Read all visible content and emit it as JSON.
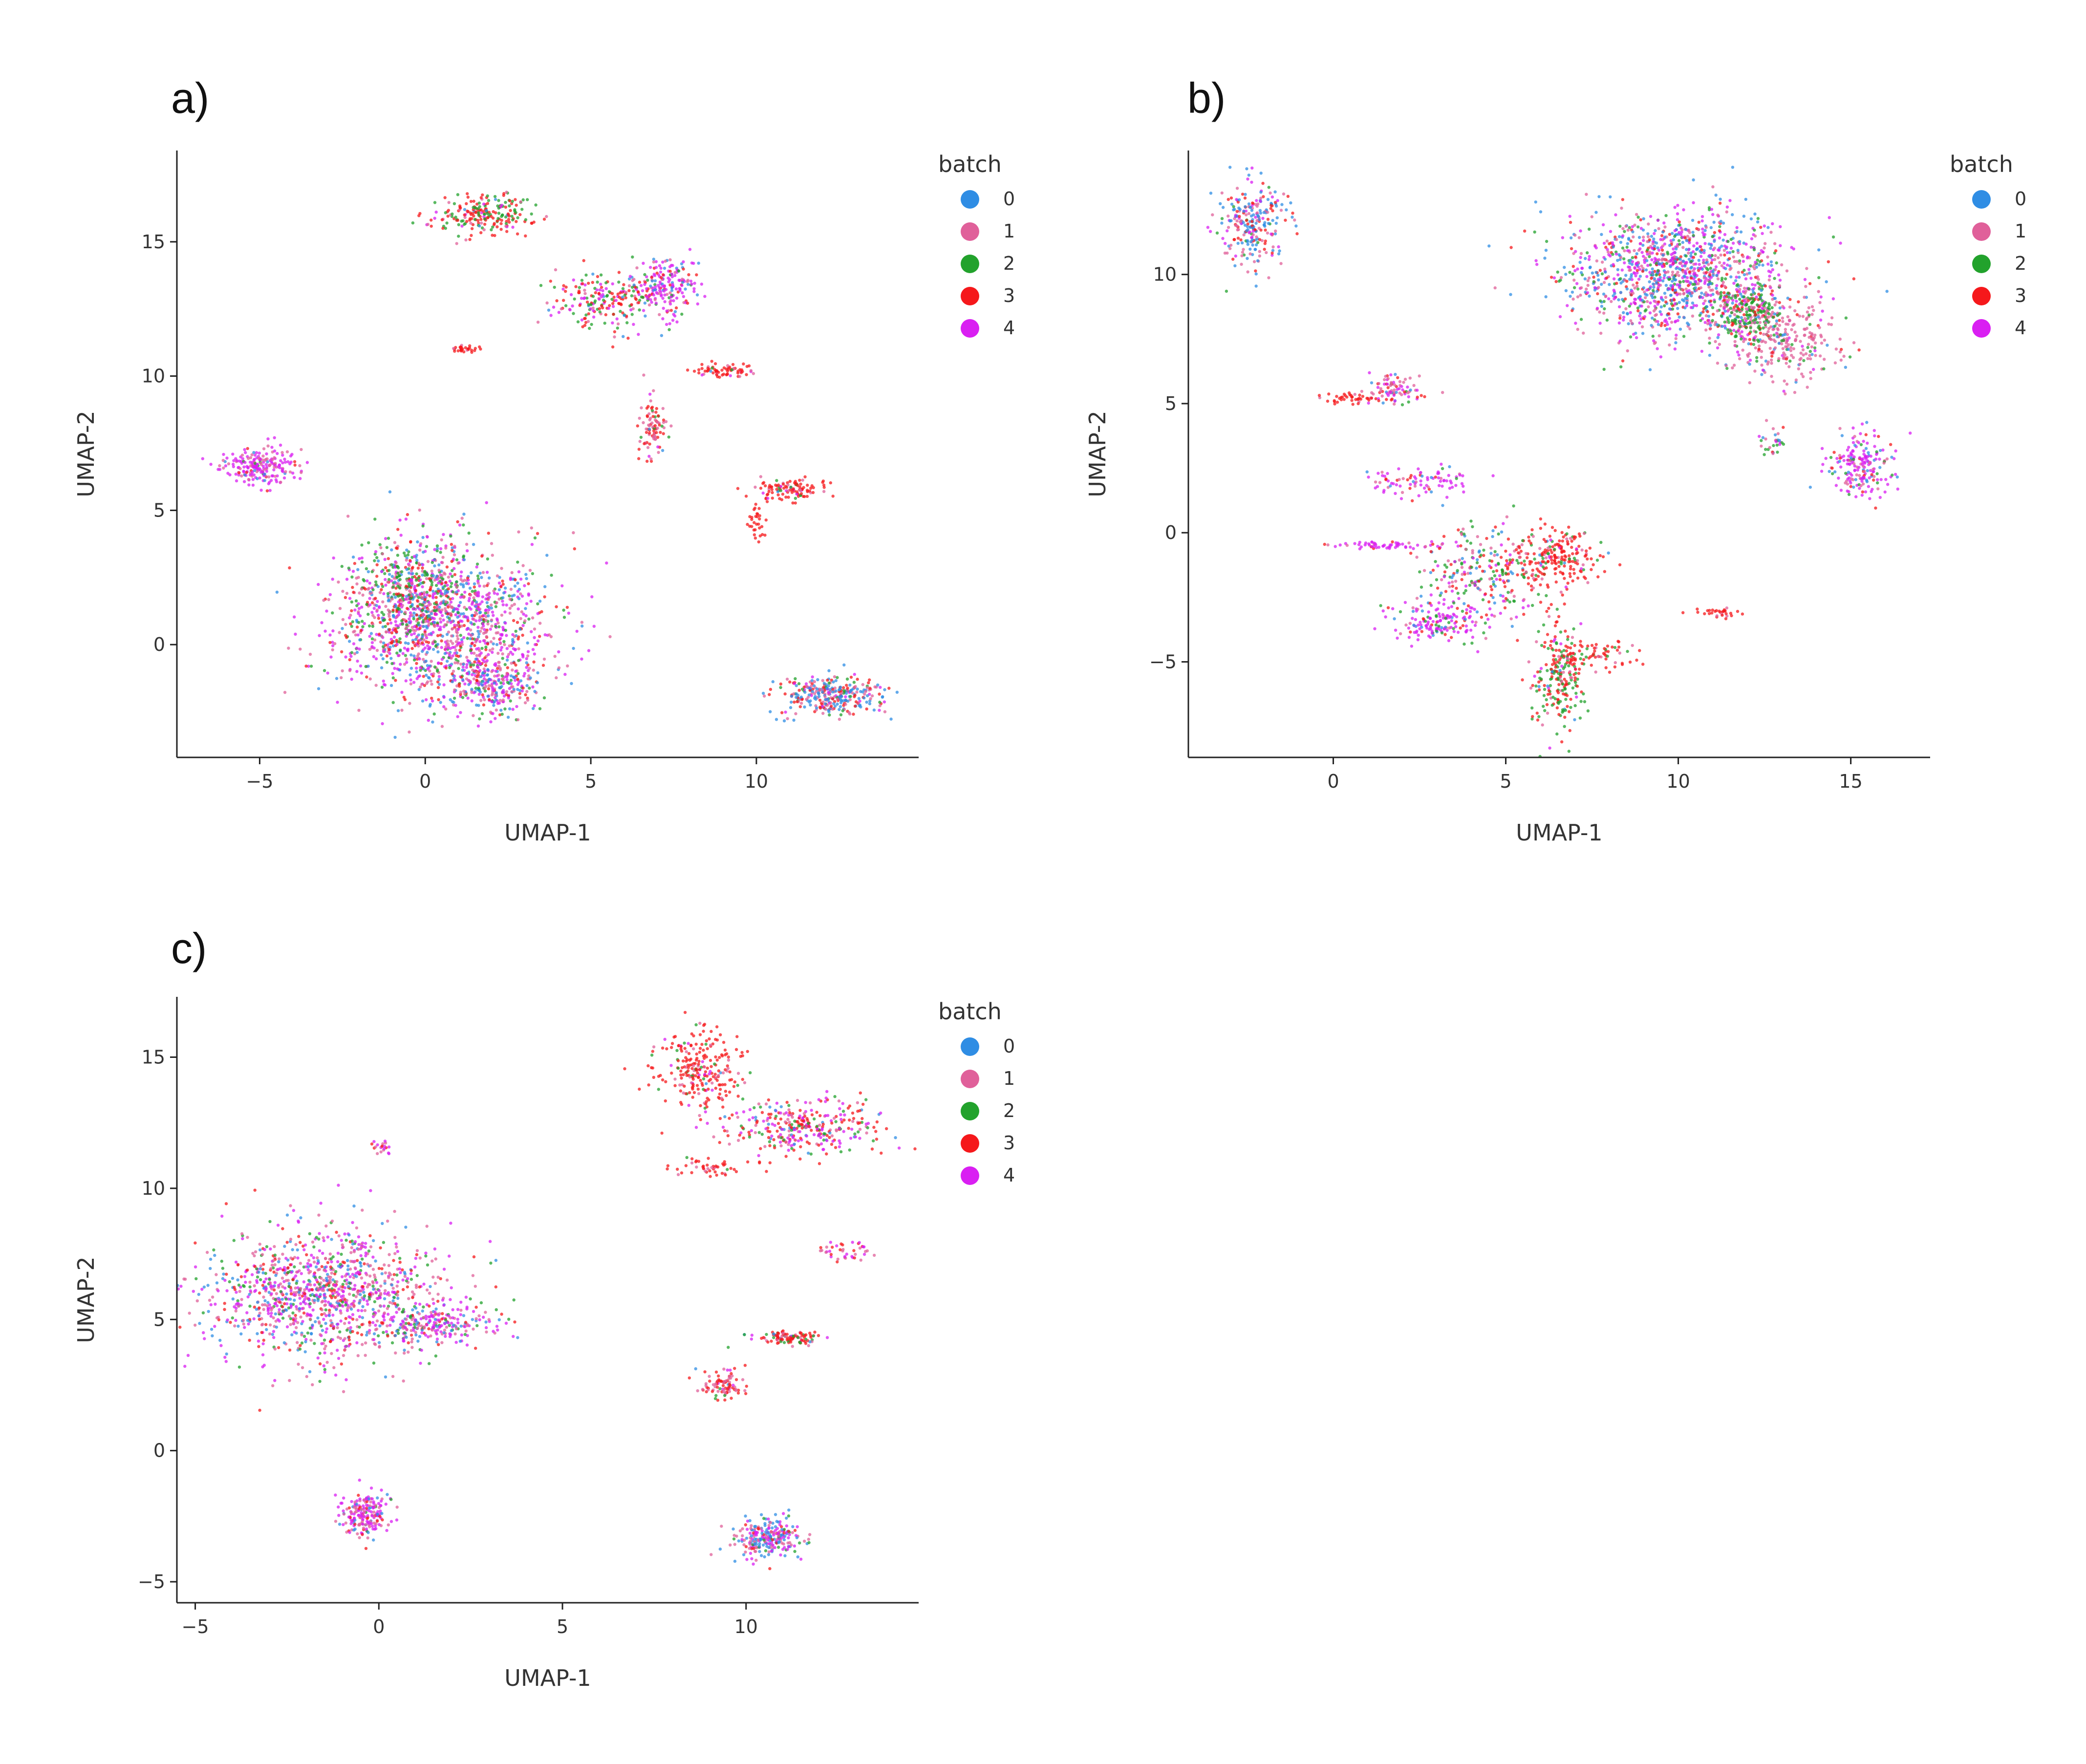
{
  "chart_data": [
    {
      "panel": "a)",
      "type": "scatter",
      "xlabel": "UMAP-1",
      "ylabel": "UMAP-2",
      "xlim": [
        -7.5,
        14.9
      ],
      "ylim": [
        -4.2,
        18.4
      ],
      "xticks": [
        -5,
        0,
        5,
        10
      ],
      "yticks": [
        0,
        5,
        10,
        15
      ],
      "legend": {
        "title": "batch",
        "position": "right"
      },
      "series": [
        {
          "name": "0",
          "color": "#2f8de4"
        },
        {
          "name": "1",
          "color": "#e0609a"
        },
        {
          "name": "2",
          "color": "#22a22c"
        },
        {
          "name": "3",
          "color": "#f5181b"
        },
        {
          "name": "4",
          "color": "#d91ff2"
        }
      ],
      "clusters": [
        {
          "cx": 0.5,
          "cy": 0.8,
          "sx": 1.6,
          "sy": 1.4,
          "n": 1400,
          "mix": [
            0.18,
            0.25,
            0.12,
            0.12,
            0.33
          ]
        },
        {
          "cx": -0.5,
          "cy": 2.2,
          "sx": 0.9,
          "sy": 0.9,
          "n": 300,
          "mix": [
            0.15,
            0.15,
            0.35,
            0.25,
            0.1
          ]
        },
        {
          "cx": 2.0,
          "cy": -1.5,
          "sx": 0.7,
          "sy": 0.5,
          "n": 250,
          "mix": [
            0.25,
            0.25,
            0.1,
            0.1,
            0.3
          ]
        },
        {
          "cx": -5.0,
          "cy": 6.6,
          "sx": 0.6,
          "sy": 0.35,
          "n": 220,
          "mix": [
            0.05,
            0.2,
            0.05,
            0.05,
            0.65
          ]
        },
        {
          "cx": 1.8,
          "cy": 16.0,
          "sx": 0.7,
          "sy": 0.35,
          "n": 220,
          "mix": [
            0.02,
            0.1,
            0.33,
            0.5,
            0.05
          ]
        },
        {
          "cx": 5.5,
          "cy": 12.8,
          "sx": 0.8,
          "sy": 0.5,
          "n": 220,
          "mix": [
            0.05,
            0.1,
            0.25,
            0.35,
            0.25
          ]
        },
        {
          "cx": 7.3,
          "cy": 13.4,
          "sx": 0.45,
          "sy": 0.6,
          "n": 180,
          "mix": [
            0.15,
            0.1,
            0.1,
            0.1,
            0.55
          ]
        },
        {
          "cx": 6.9,
          "cy": 8.0,
          "sx": 0.2,
          "sy": 0.6,
          "n": 90,
          "mix": [
            0.02,
            0.45,
            0.08,
            0.35,
            0.1
          ]
        },
        {
          "cx": 9.0,
          "cy": 10.2,
          "sx": 0.5,
          "sy": 0.12,
          "n": 70,
          "mix": [
            0.02,
            0.15,
            0.05,
            0.7,
            0.08
          ]
        },
        {
          "cx": 1.2,
          "cy": 11.0,
          "sx": 0.2,
          "sy": 0.08,
          "n": 30,
          "mix": [
            0.0,
            0.2,
            0.0,
            0.8,
            0.0
          ]
        },
        {
          "cx": 11.0,
          "cy": 5.8,
          "sx": 0.5,
          "sy": 0.18,
          "n": 110,
          "mix": [
            0.02,
            0.1,
            0.05,
            0.78,
            0.05
          ]
        },
        {
          "cx": 10.0,
          "cy": 4.5,
          "sx": 0.12,
          "sy": 0.3,
          "n": 30,
          "mix": [
            0.0,
            0.1,
            0.0,
            0.9,
            0.0
          ]
        },
        {
          "cx": 12.2,
          "cy": -1.9,
          "sx": 0.8,
          "sy": 0.35,
          "n": 320,
          "mix": [
            0.35,
            0.25,
            0.08,
            0.22,
            0.1
          ]
        }
      ]
    },
    {
      "panel": "b)",
      "type": "scatter",
      "xlabel": "UMAP-1",
      "ylabel": "UMAP-2",
      "xlim": [
        -4.2,
        17.3
      ],
      "ylim": [
        -8.7,
        14.8
      ],
      "xticks": [
        0,
        5,
        10,
        15
      ],
      "yticks": [
        -5,
        0,
        5,
        10
      ],
      "legend": {
        "title": "batch",
        "position": "right"
      },
      "series": [
        {
          "name": "0",
          "color": "#2f8de4"
        },
        {
          "name": "1",
          "color": "#e0609a"
        },
        {
          "name": "2",
          "color": "#22a22c"
        },
        {
          "name": "3",
          "color": "#f5181b"
        },
        {
          "name": "4",
          "color": "#d91ff2"
        }
      ],
      "clusters": [
        {
          "cx": -2.3,
          "cy": 12.0,
          "sx": 0.45,
          "sy": 0.9,
          "n": 260,
          "mix": [
            0.4,
            0.25,
            0.05,
            0.2,
            0.1
          ]
        },
        {
          "cx": 10.0,
          "cy": 10.0,
          "sx": 1.6,
          "sy": 1.2,
          "n": 1300,
          "mix": [
            0.3,
            0.22,
            0.1,
            0.1,
            0.28
          ]
        },
        {
          "cx": 13.0,
          "cy": 7.5,
          "sx": 0.8,
          "sy": 0.8,
          "n": 300,
          "mix": [
            0.05,
            0.7,
            0.1,
            0.05,
            0.1
          ]
        },
        {
          "cx": 12.0,
          "cy": 8.5,
          "sx": 0.5,
          "sy": 0.5,
          "n": 200,
          "mix": [
            0.05,
            0.15,
            0.6,
            0.15,
            0.05
          ]
        },
        {
          "cx": 15.3,
          "cy": 2.7,
          "sx": 0.45,
          "sy": 0.6,
          "n": 200,
          "mix": [
            0.1,
            0.2,
            0.05,
            0.05,
            0.6
          ]
        },
        {
          "cx": 1.8,
          "cy": 5.5,
          "sx": 0.4,
          "sy": 0.3,
          "n": 90,
          "mix": [
            0.05,
            0.4,
            0.05,
            0.15,
            0.35
          ]
        },
        {
          "cx": 0.5,
          "cy": 5.2,
          "sx": 0.4,
          "sy": 0.1,
          "n": 40,
          "mix": [
            0.0,
            0.1,
            0.0,
            0.9,
            0.0
          ]
        },
        {
          "cx": 2.5,
          "cy": 2.0,
          "sx": 0.9,
          "sy": 0.3,
          "n": 90,
          "mix": [
            0.05,
            0.15,
            0.05,
            0.1,
            0.65
          ]
        },
        {
          "cx": 1.5,
          "cy": -0.5,
          "sx": 0.8,
          "sy": 0.08,
          "n": 60,
          "mix": [
            0.0,
            0.1,
            0.0,
            0.1,
            0.8
          ]
        },
        {
          "cx": 4.5,
          "cy": -1.5,
          "sx": 0.9,
          "sy": 0.9,
          "n": 260,
          "mix": [
            0.15,
            0.15,
            0.3,
            0.25,
            0.15
          ]
        },
        {
          "cx": 6.5,
          "cy": -1.0,
          "sx": 0.6,
          "sy": 0.6,
          "n": 200,
          "mix": [
            0.02,
            0.1,
            0.08,
            0.75,
            0.05
          ]
        },
        {
          "cx": 3.0,
          "cy": -3.5,
          "sx": 0.6,
          "sy": 0.5,
          "n": 160,
          "mix": [
            0.1,
            0.1,
            0.1,
            0.1,
            0.6
          ]
        },
        {
          "cx": 6.5,
          "cy": -5.5,
          "sx": 0.4,
          "sy": 1.0,
          "n": 220,
          "mix": [
            0.02,
            0.08,
            0.4,
            0.45,
            0.05
          ]
        },
        {
          "cx": 7.5,
          "cy": -4.7,
          "sx": 0.6,
          "sy": 0.3,
          "n": 80,
          "mix": [
            0.0,
            0.1,
            0.1,
            0.8,
            0.0
          ]
        },
        {
          "cx": 11.2,
          "cy": -3.1,
          "sx": 0.35,
          "sy": 0.1,
          "n": 30,
          "mix": [
            0.0,
            0.2,
            0.0,
            0.8,
            0.0
          ]
        },
        {
          "cx": 12.8,
          "cy": 3.5,
          "sx": 0.2,
          "sy": 0.3,
          "n": 30,
          "mix": [
            0.1,
            0.3,
            0.4,
            0.1,
            0.1
          ]
        }
      ]
    },
    {
      "panel": "c)",
      "type": "scatter",
      "xlabel": "UMAP-1",
      "ylabel": "UMAP-2",
      "xlim": [
        -5.5,
        14.7
      ],
      "ylim": [
        -5.8,
        17.3
      ],
      "xticks": [
        -5,
        0,
        5,
        10
      ],
      "yticks": [
        -5,
        0,
        5,
        10,
        15
      ],
      "legend": {
        "title": "batch",
        "position": "right"
      },
      "series": [
        {
          "name": "0",
          "color": "#2f8de4"
        },
        {
          "name": "1",
          "color": "#e0609a"
        },
        {
          "name": "2",
          "color": "#22a22c"
        },
        {
          "name": "3",
          "color": "#f5181b"
        },
        {
          "name": "4",
          "color": "#d91ff2"
        }
      ],
      "clusters": [
        {
          "cx": -1.5,
          "cy": 6.0,
          "sx": 1.6,
          "sy": 1.2,
          "n": 1200,
          "mix": [
            0.15,
            0.3,
            0.12,
            0.13,
            0.3
          ]
        },
        {
          "cx": 1.5,
          "cy": 4.8,
          "sx": 0.9,
          "sy": 0.4,
          "n": 220,
          "mix": [
            0.15,
            0.25,
            0.1,
            0.1,
            0.4
          ]
        },
        {
          "cx": -0.4,
          "cy": -2.5,
          "sx": 0.35,
          "sy": 0.45,
          "n": 200,
          "mix": [
            0.1,
            0.25,
            0.05,
            0.1,
            0.5
          ]
        },
        {
          "cx": 0.1,
          "cy": 11.6,
          "sx": 0.1,
          "sy": 0.12,
          "n": 20,
          "mix": [
            0.1,
            0.4,
            0.0,
            0.1,
            0.4
          ]
        },
        {
          "cx": 8.8,
          "cy": 14.5,
          "sx": 0.6,
          "sy": 0.8,
          "n": 250,
          "mix": [
            0.02,
            0.08,
            0.08,
            0.77,
            0.05
          ]
        },
        {
          "cx": 11.5,
          "cy": 12.3,
          "sx": 1.0,
          "sy": 0.5,
          "n": 320,
          "mix": [
            0.1,
            0.15,
            0.12,
            0.35,
            0.28
          ]
        },
        {
          "cx": 9.0,
          "cy": 10.8,
          "sx": 0.6,
          "sy": 0.2,
          "n": 50,
          "mix": [
            0.0,
            0.2,
            0.1,
            0.7,
            0.0
          ]
        },
        {
          "cx": 12.8,
          "cy": 7.6,
          "sx": 0.4,
          "sy": 0.2,
          "n": 40,
          "mix": [
            0.0,
            0.3,
            0.0,
            0.4,
            0.3
          ]
        },
        {
          "cx": 11.2,
          "cy": 4.3,
          "sx": 0.5,
          "sy": 0.12,
          "n": 110,
          "mix": [
            0.05,
            0.2,
            0.15,
            0.55,
            0.05
          ]
        },
        {
          "cx": 9.4,
          "cy": 2.5,
          "sx": 0.3,
          "sy": 0.3,
          "n": 90,
          "mix": [
            0.02,
            0.3,
            0.05,
            0.55,
            0.08
          ]
        },
        {
          "cx": 10.6,
          "cy": -3.3,
          "sx": 0.5,
          "sy": 0.4,
          "n": 250,
          "mix": [
            0.3,
            0.25,
            0.05,
            0.1,
            0.3
          ]
        }
      ]
    }
  ]
}
